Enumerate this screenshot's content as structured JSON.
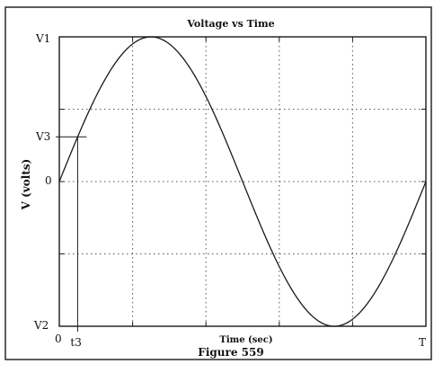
{
  "chart_data": {
    "type": "line",
    "title": "Voltage vs Time",
    "xlabel": "Time (sec)",
    "ylabel": "V (volts)",
    "caption": "Figure 559",
    "x_tick_labels": {
      "start": "0",
      "marker": "t3",
      "end": "T"
    },
    "y_tick_labels": {
      "max": "V1",
      "marker": "V3",
      "zero": "0",
      "min": "V2"
    },
    "series": [
      {
        "function": "sine",
        "amplitude": 1,
        "periods": 1,
        "phase": 0
      }
    ],
    "marker_fraction_of_T": 0.05,
    "xlim": [
      0,
      1
    ],
    "ylim": [
      -1,
      1
    ],
    "grid": true
  }
}
